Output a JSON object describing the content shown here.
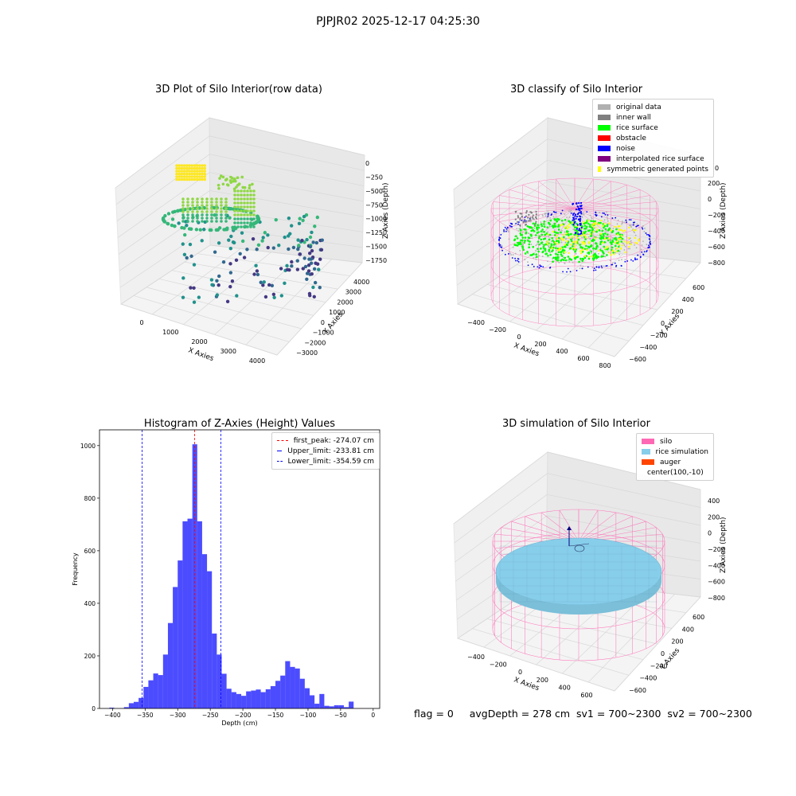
{
  "suptitle": "PJPJR02 2025-12-17 04:25:30",
  "footer": "flag = 0     avgDepth = 278 cm  sv1 = 700~2300  sv2 = 700~2300",
  "chart_data": [
    {
      "type": "scatter",
      "title": "3D Plot of Silo Interior(row data)",
      "xlabel": "X Axies",
      "ylabel": "Y Axies",
      "zlabel": "Z Axies (Depth)",
      "x_ticks": [
        "0",
        "1000",
        "2000",
        "3000",
        "4000"
      ],
      "y_ticks": [
        "−3000",
        "−2000",
        "−1000",
        "0",
        "1000",
        "2000",
        "3000",
        "4000"
      ],
      "z_ticks": [
        "0",
        "−250",
        "−500",
        "−750",
        "−1000",
        "−1250",
        "−1500",
        "−1750"
      ],
      "colormap": [
        "#fde725",
        "#8fd744",
        "#35b779",
        "#21918c",
        "#31688e",
        "#443983",
        "#440154"
      ]
    },
    {
      "type": "scatter",
      "title": "3D classify of Silo Interior",
      "xlabel": "X Axies",
      "ylabel": "Y Axies",
      "zlabel": "Z Axies (Depth)",
      "x_ticks": [
        "−400",
        "−200",
        "0",
        "200",
        "400",
        "600",
        "800"
      ],
      "y_ticks": [
        "−600",
        "−400",
        "−200",
        "0",
        "200",
        "400",
        "600"
      ],
      "z_ticks": [
        "200",
        "0",
        "−200",
        "−400",
        "−600",
        "−800"
      ],
      "z_top_partial": "0",
      "legend": [
        {
          "label": "original data",
          "color": "#b0b0b0"
        },
        {
          "label": "inner wall",
          "color": "#808080"
        },
        {
          "label": "rice surface",
          "color": "#00ff00"
        },
        {
          "label": "obstacle",
          "color": "#ff0000"
        },
        {
          "label": "noise",
          "color": "#0000ff"
        },
        {
          "label": "interpolated rice surface",
          "color": "#800080"
        },
        {
          "label": "symmetric generated points",
          "color": "#ffff00"
        }
      ],
      "wireframe_color": "#ff69b4"
    },
    {
      "type": "bar",
      "title": "Histogram of Z-Axies (Height) Values",
      "xlabel": "Depth (cm)",
      "ylabel": "Frequency",
      "xlim": [
        -420,
        10
      ],
      "ylim": [
        0,
        1060
      ],
      "x_ticks": [
        -400,
        -350,
        -300,
        -250,
        -200,
        -150,
        -100,
        -50,
        0
      ],
      "y_ticks": [
        0,
        200,
        400,
        600,
        800,
        1000
      ],
      "bin_start": -405,
      "bin_width": 7.5,
      "values": [
        3,
        0,
        0,
        5,
        20,
        25,
        40,
        82,
        107,
        133,
        127,
        205,
        325,
        462,
        563,
        712,
        722,
        1005,
        712,
        587,
        522,
        285,
        205,
        132,
        75,
        62,
        55,
        48,
        65,
        68,
        72,
        62,
        73,
        85,
        105,
        125,
        180,
        158,
        152,
        113,
        77,
        50,
        18,
        55,
        10,
        8,
        12,
        12,
        5,
        26
      ],
      "bar_color": "#0000ff",
      "vlines": [
        {
          "label": "first_peak: -274.07 cm",
          "value": -274.07,
          "color": "#ff0000"
        },
        {
          "label": "Upper_limit: -233.81 cm",
          "value": -233.81,
          "color": "#0000ff"
        },
        {
          "label": "Lower_limit: -354.59 cm",
          "value": -354.59,
          "color": "#0000ff"
        }
      ]
    },
    {
      "type": "surface",
      "title": "3D simulation of Silo Interior",
      "xlabel": "X Axies",
      "ylabel": "Y Axies",
      "zlabel": "Z Axies (Depth)",
      "x_ticks": [
        "−400",
        "−200",
        "0",
        "200",
        "400",
        "600"
      ],
      "y_ticks": [
        "−600",
        "−400",
        "−200",
        "0",
        "200",
        "400",
        "600"
      ],
      "z_ticks": [
        "400",
        "200",
        "0",
        "−200",
        "−400",
        "−600",
        "−800"
      ],
      "legend": [
        {
          "label": "silo",
          "color": "#ff69b4"
        },
        {
          "label": "rice simulation",
          "color": "#87ceeb"
        },
        {
          "label": "auger",
          "color": "#ff4500"
        },
        {
          "label": "center(100,-10)",
          "color": ""
        }
      ]
    }
  ]
}
